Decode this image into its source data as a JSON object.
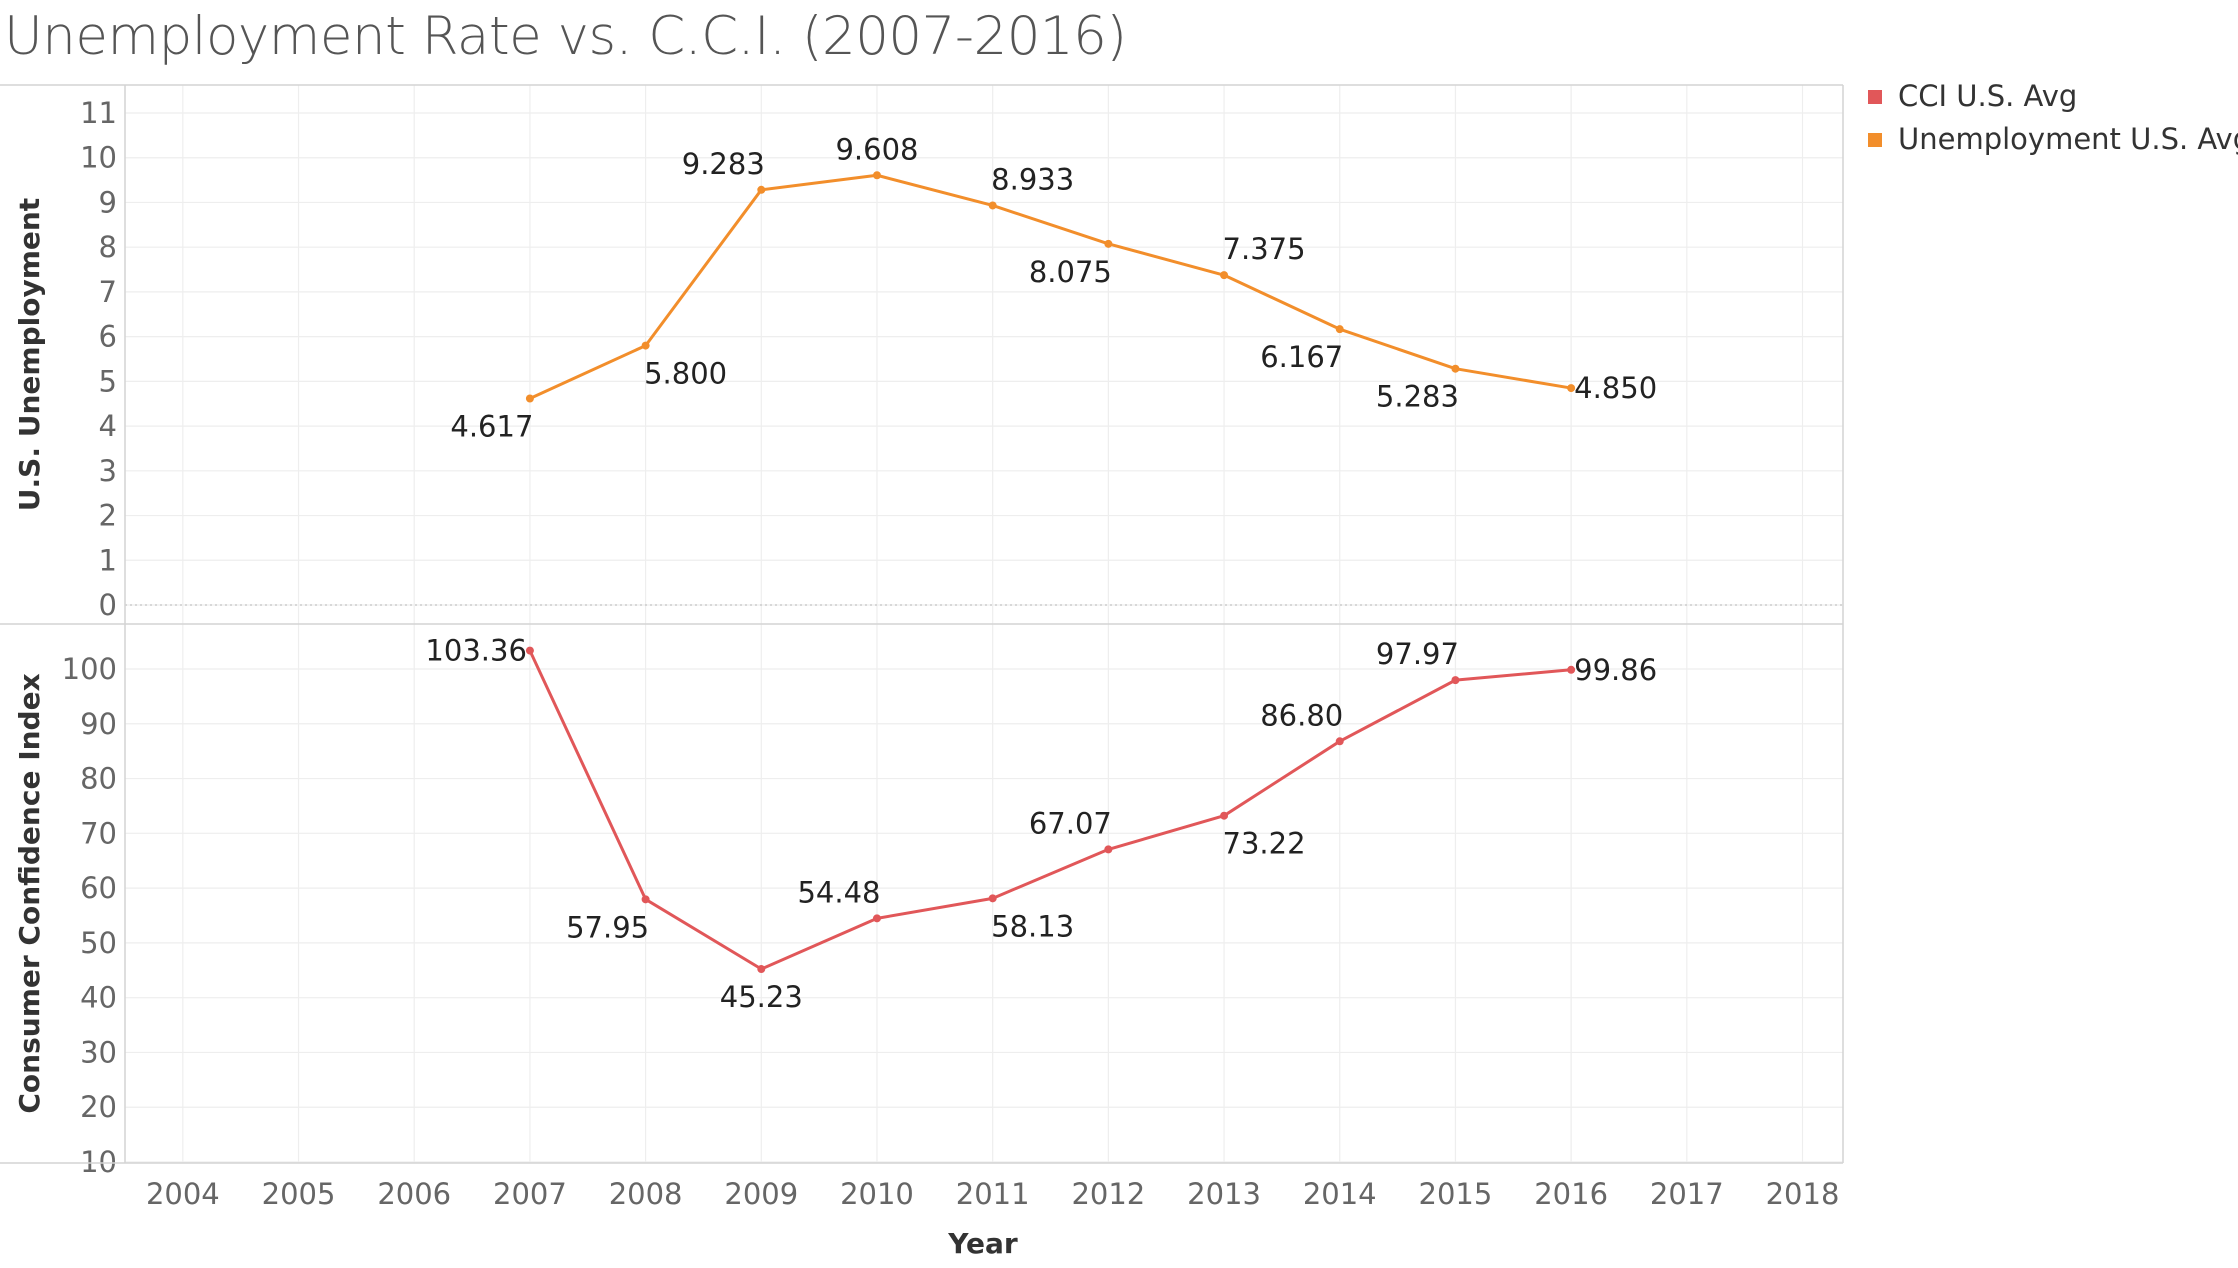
{
  "title": "Unemployment Rate vs. C.C.I. (2007-2016)",
  "colors": {
    "cci": "#e15759",
    "unemployment": "#f28e2b",
    "grid": "#eeeeee",
    "axis": "#d4d4d4"
  },
  "legend": [
    {
      "key": "cci",
      "label": "CCI U.S. Avg"
    },
    {
      "key": "unemployment",
      "label": "Unemployment U.S. Avg"
    }
  ],
  "chart_data": [
    {
      "type": "line",
      "panel": "top",
      "ylabel": "U.S. Unemployment",
      "ylim": [
        0,
        11
      ],
      "yticks": [
        0,
        1,
        2,
        3,
        4,
        5,
        6,
        7,
        8,
        9,
        10,
        11
      ],
      "grid": true,
      "series": [
        {
          "name": "Unemployment U.S. Avg",
          "x": [
            2007,
            2008,
            2009,
            2010,
            2011,
            2012,
            2013,
            2014,
            2015,
            2016
          ],
          "values": [
            4.617,
            5.8,
            9.283,
            9.608,
            8.933,
            8.075,
            7.375,
            6.167,
            5.283,
            4.85
          ],
          "labels": [
            "4.617",
            "5.800",
            "9.283",
            "9.608",
            "8.933",
            "8.075",
            "7.375",
            "6.167",
            "5.283",
            "4.850"
          ],
          "label_pos": [
            "below-left",
            "below-right",
            "above-left",
            "above",
            "above-right",
            "below-left",
            "above-right",
            "below-left",
            "below-left",
            "right"
          ]
        }
      ]
    },
    {
      "type": "line",
      "panel": "bottom",
      "ylabel": "Consumer Confidence Index",
      "ylim": [
        0,
        110
      ],
      "yticks": [
        10,
        20,
        30,
        40,
        50,
        60,
        70,
        80,
        90,
        100
      ],
      "grid": true,
      "xlabel": "Year",
      "xlim": [
        2003.5,
        2018.35
      ],
      "xticks": [
        2004,
        2005,
        2006,
        2007,
        2008,
        2009,
        2010,
        2011,
        2012,
        2013,
        2014,
        2015,
        2016,
        2017,
        2018
      ],
      "series": [
        {
          "name": "CCI U.S. Avg",
          "x": [
            2007,
            2008,
            2009,
            2010,
            2011,
            2012,
            2013,
            2014,
            2015,
            2016
          ],
          "values": [
            103.36,
            57.95,
            45.23,
            54.48,
            58.13,
            67.07,
            73.22,
            86.8,
            97.97,
            99.86
          ],
          "labels": [
            "103.36",
            "57.95",
            "45.23",
            "54.48",
            "58.13",
            "67.07",
            "73.22",
            "86.80",
            "97.97",
            "99.86"
          ],
          "label_pos": [
            "left",
            "below-left",
            "below",
            "above-left",
            "below-right",
            "above-left",
            "below-right",
            "above-left",
            "above-left",
            "right"
          ]
        }
      ]
    }
  ]
}
